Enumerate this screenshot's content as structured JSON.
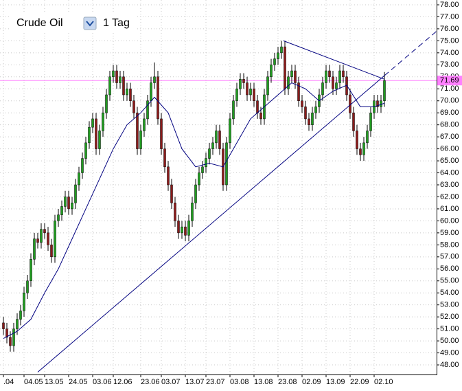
{
  "chart_data": {
    "type": "candlestick",
    "title": "Crude Oil",
    "timeframe": "1 Tag",
    "categories": [
      ".04",
      null,
      null,
      null,
      null,
      null,
      "04.05",
      null,
      null,
      null,
      null,
      null,
      "13.05",
      null,
      null,
      null,
      null,
      null,
      null,
      "24.05",
      null,
      null,
      null,
      null,
      null,
      null,
      "03.06",
      null,
      null,
      null,
      null,
      null,
      "12.06",
      null,
      null,
      null,
      null,
      null,
      null,
      null,
      "23.06",
      null,
      null,
      null,
      null,
      null,
      "03.07",
      null,
      null,
      null,
      null,
      null,
      null,
      "13.07",
      null,
      null,
      null,
      null,
      null,
      "23.07",
      null,
      null,
      null,
      null,
      null,
      null,
      "03.08",
      null,
      null,
      null,
      null,
      null,
      null,
      "13.08",
      null,
      null,
      null,
      null,
      null,
      null,
      "23.08",
      null,
      null,
      null,
      null,
      null,
      null,
      "02.09",
      null,
      null,
      null,
      null,
      null,
      null,
      "13.09",
      null,
      null,
      null,
      null,
      null,
      null,
      "22.09",
      null,
      null,
      null,
      null,
      null,
      null,
      "02.10",
      null,
      null,
      null
    ],
    "series": {
      "open": [
        51.5,
        51.0,
        50.3,
        49.6,
        51.0,
        51.8,
        52.5,
        54.0,
        55.0,
        56.8,
        58.5,
        58.2,
        59.3,
        59.0,
        58.0,
        57.0,
        60.0,
        60.5,
        61.2,
        62.0,
        61.0,
        61.5,
        63.0,
        64.0,
        65.2,
        66.5,
        67.8,
        68.5,
        66.0,
        67.5,
        69.0,
        70.5,
        72.0,
        72.5,
        71.5,
        72.0,
        70.5,
        71.0,
        70.0,
        69.0,
        66.0,
        67.5,
        68.5,
        70.0,
        71.5,
        72.0,
        68.5,
        66.0,
        64.5,
        63.0,
        61.5,
        60.0,
        59.0,
        59.5,
        58.8,
        60.0,
        61.5,
        63.0,
        64.0,
        64.5,
        65.2,
        66.0,
        66.5,
        67.5,
        66.0,
        63.0,
        66.5,
        68.5,
        70.0,
        71.0,
        71.8,
        71.5,
        70.5,
        71.0,
        70.0,
        69.0,
        68.5,
        70.5,
        72.0,
        73.0,
        73.5,
        74.0,
        74.5,
        71.0,
        72.0,
        72.5,
        71.5,
        70.0,
        69.5,
        68.5,
        68.0,
        69.0,
        69.5,
        70.5,
        71.5,
        72.5,
        72.0,
        71.0,
        71.5,
        72.5,
        72.0,
        70.5,
        69.0,
        67.5,
        66.0,
        65.5,
        66.5,
        67.5,
        69.0,
        70.0,
        69.5,
        70.0
      ],
      "high": [
        52.0,
        51.5,
        50.8,
        51.5,
        52.3,
        53.0,
        54.5,
        55.5,
        57.3,
        59.0,
        59.0,
        59.8,
        59.8,
        59.5,
        58.5,
        60.5,
        61.0,
        61.7,
        62.5,
        62.5,
        62.0,
        63.5,
        64.5,
        65.7,
        67.0,
        68.3,
        69.0,
        69.0,
        68.0,
        69.5,
        71.0,
        72.5,
        73.0,
        73.0,
        72.5,
        72.5,
        71.5,
        71.5,
        70.5,
        69.5,
        68.0,
        69.0,
        70.5,
        72.0,
        73.2,
        72.5,
        69.0,
        66.5,
        65.0,
        63.5,
        62.0,
        60.5,
        60.0,
        60.0,
        60.5,
        62.0,
        63.5,
        64.5,
        65.0,
        65.7,
        66.5,
        67.0,
        68.0,
        68.0,
        66.5,
        67.0,
        69.0,
        70.5,
        71.5,
        72.3,
        72.3,
        72.0,
        71.5,
        71.5,
        70.5,
        69.5,
        71.0,
        72.5,
        73.5,
        74.0,
        74.5,
        75.0,
        75.0,
        72.5,
        73.0,
        73.0,
        72.0,
        70.5,
        70.0,
        69.0,
        69.5,
        70.0,
        71.0,
        72.0,
        73.0,
        73.0,
        72.5,
        72.0,
        73.0,
        73.0,
        72.5,
        71.0,
        69.5,
        68.0,
        66.5,
        67.0,
        68.0,
        69.5,
        70.5,
        70.5,
        70.5,
        72.4
      ],
      "low": [
        50.5,
        49.8,
        49.1,
        49.1,
        50.5,
        51.3,
        52.0,
        53.5,
        54.5,
        56.3,
        57.7,
        57.7,
        58.5,
        57.5,
        56.5,
        56.5,
        59.5,
        60.0,
        60.7,
        60.5,
        60.5,
        61.0,
        62.5,
        63.5,
        64.7,
        66.0,
        67.3,
        65.5,
        65.5,
        67.0,
        68.5,
        70.0,
        71.5,
        71.0,
        71.0,
        70.0,
        70.0,
        69.5,
        68.5,
        65.5,
        65.5,
        67.0,
        68.0,
        69.5,
        71.0,
        68.0,
        65.5,
        64.0,
        62.5,
        61.0,
        59.5,
        58.5,
        58.5,
        58.3,
        58.3,
        59.5,
        61.0,
        62.5,
        63.5,
        64.0,
        64.7,
        65.5,
        66.0,
        65.5,
        62.5,
        62.5,
        66.0,
        68.0,
        69.5,
        70.5,
        71.0,
        70.0,
        70.0,
        69.5,
        68.5,
        68.0,
        68.0,
        70.0,
        71.5,
        72.5,
        73.0,
        73.5,
        70.5,
        70.5,
        71.5,
        71.0,
        69.5,
        69.0,
        68.0,
        67.5,
        67.5,
        68.5,
        69.0,
        70.0,
        71.0,
        71.5,
        70.5,
        70.5,
        71.0,
        71.5,
        70.0,
        68.5,
        67.0,
        65.5,
        65.0,
        65.0,
        66.0,
        67.0,
        68.5,
        69.0,
        69.0,
        69.5
      ],
      "close": [
        51.0,
        50.3,
        49.6,
        51.0,
        51.8,
        52.5,
        54.0,
        55.0,
        56.8,
        58.5,
        58.2,
        59.3,
        59.0,
        58.0,
        57.0,
        60.0,
        60.5,
        61.2,
        62.0,
        61.0,
        61.5,
        63.0,
        64.0,
        65.2,
        66.5,
        67.8,
        68.5,
        66.0,
        67.5,
        69.0,
        70.5,
        72.0,
        72.5,
        71.5,
        72.0,
        70.5,
        71.0,
        70.0,
        69.0,
        66.0,
        67.5,
        68.5,
        70.0,
        71.5,
        72.0,
        68.5,
        66.0,
        64.5,
        63.0,
        61.5,
        60.0,
        59.0,
        59.5,
        58.8,
        60.0,
        61.5,
        63.0,
        64.0,
        64.5,
        65.2,
        66.0,
        66.5,
        67.5,
        66.0,
        63.0,
        66.5,
        68.5,
        70.0,
        71.0,
        71.8,
        71.5,
        70.5,
        71.0,
        70.0,
        69.0,
        68.5,
        70.5,
        72.0,
        73.0,
        73.5,
        74.0,
        74.5,
        71.0,
        72.0,
        72.5,
        71.5,
        70.0,
        69.5,
        68.5,
        68.0,
        69.0,
        69.5,
        70.5,
        71.5,
        72.5,
        72.0,
        71.0,
        71.5,
        72.5,
        72.0,
        70.5,
        69.0,
        67.5,
        66.0,
        65.5,
        66.5,
        67.5,
        69.0,
        70.0,
        69.5,
        70.0,
        71.69
      ]
    },
    "up_color": "#1f9c1f",
    "down_color": "#8b1a1a",
    "moving_average": {
      "color": "#000080",
      "x": [
        0,
        4,
        8,
        12,
        16,
        20,
        24,
        28,
        32,
        36,
        40,
        44,
        48,
        52,
        56,
        60,
        64,
        68,
        72,
        76,
        80,
        84,
        88,
        92,
        96,
        100,
        104,
        108,
        111
      ],
      "values": [
        50.2,
        50.8,
        51.8,
        54.0,
        56.0,
        58.5,
        61.0,
        63.5,
        66.0,
        68.0,
        69.0,
        70.3,
        69.0,
        66.0,
        64.5,
        64.8,
        64.5,
        66.5,
        68.5,
        69.5,
        70.5,
        71.5,
        71.0,
        70.0,
        70.8,
        71.3,
        69.5,
        69.5,
        69.8
      ]
    },
    "trendlines": [
      {
        "color": "#000080",
        "dashed": false,
        "x": [
          10,
          111
        ],
        "y": [
          47.4,
          72.1
        ]
      },
      {
        "color": "#000080",
        "dashed": true,
        "x": [
          111,
          126.2
        ],
        "y": [
          72.1,
          75.8
        ]
      },
      {
        "color": "#000080",
        "dashed": false,
        "x": [
          81.6,
          111
        ],
        "y": [
          75.0,
          71.8
        ]
      }
    ],
    "hline": 71.69,
    "hline_color": "#ff80ff",
    "ylim": [
      47.2,
      78.4
    ],
    "yticks": [
      {
        "value": 48,
        "label": "48.00"
      },
      {
        "value": 49,
        "label": "49.00"
      },
      {
        "value": 50,
        "label": "50.00"
      },
      {
        "value": 51,
        "label": "51.00"
      },
      {
        "value": 52,
        "label": "52.00"
      },
      {
        "value": 53,
        "label": "53.00"
      },
      {
        "value": 54,
        "label": "54.00"
      },
      {
        "value": 55,
        "label": "55.00"
      },
      {
        "value": 56,
        "label": "56.00"
      },
      {
        "value": 57,
        "label": "57.00"
      },
      {
        "value": 58,
        "label": "58.00"
      },
      {
        "value": 59,
        "label": "59.00"
      },
      {
        "value": 60,
        "label": "60.00"
      },
      {
        "value": 61,
        "label": "61.00"
      },
      {
        "value": 62,
        "label": "62.00"
      },
      {
        "value": 63,
        "label": "63.00"
      },
      {
        "value": 64,
        "label": "64.00"
      },
      {
        "value": 65,
        "label": "65.00"
      },
      {
        "value": 66,
        "label": "66.00"
      },
      {
        "value": 67,
        "label": "67.00"
      },
      {
        "value": 68,
        "label": "68.00"
      },
      {
        "value": 69,
        "label": "69.00"
      },
      {
        "value": 70,
        "label": "70.00"
      },
      {
        "value": 71,
        "label": "71.00"
      },
      {
        "value": 72,
        "label": "72.00"
      },
      {
        "value": 73,
        "label": "73.00"
      },
      {
        "value": 74,
        "label": "74.00"
      },
      {
        "value": 75,
        "label": "75.00"
      },
      {
        "value": 76,
        "label": "76.00"
      },
      {
        "value": 77,
        "label": "77.00"
      },
      {
        "value": 78,
        "label": "78.00"
      }
    ],
    "grid": true
  }
}
